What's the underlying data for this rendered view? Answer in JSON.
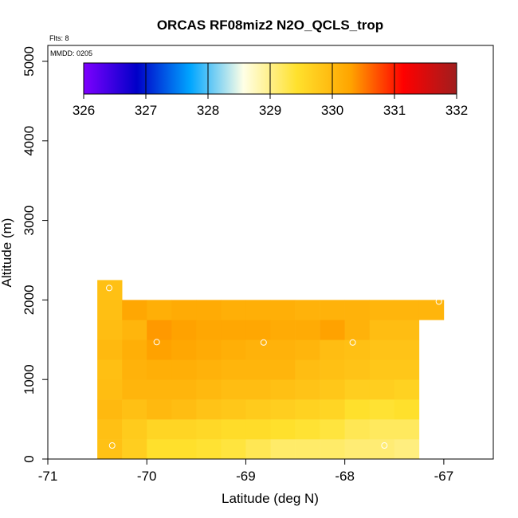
{
  "chart_data": {
    "type": "heatmap",
    "title": "ORCAS RF08miz2 N2O_QCLS_trop",
    "flights_label": "Flts: 8",
    "date_label": "MMDD: 0205",
    "xlabel": "Latitude (deg N)",
    "ylabel": "Altitude (m)",
    "xlim": [
      -71,
      -66.5
    ],
    "ylim": [
      0,
      5200
    ],
    "xticks": [
      -71,
      -70,
      -69,
      -68,
      -67
    ],
    "xtick_labels": [
      "-71",
      "-70",
      "-69",
      "-68",
      "-67"
    ],
    "yticks": [
      0,
      1000,
      2000,
      3000,
      4000,
      5000
    ],
    "ytick_labels": [
      "0",
      "1000",
      "2000",
      "3000",
      "4000",
      "5000"
    ],
    "colorbar": {
      "min": 326,
      "max": 332,
      "ticks": [
        326,
        327,
        328,
        329,
        330,
        331,
        332
      ],
      "tick_labels": [
        "326",
        "327",
        "328",
        "329",
        "330",
        "331",
        "332"
      ],
      "stops": [
        "#7F00FF",
        "#0000C8",
        "#00A5FF",
        "#FFFFE6",
        "#FFE12D",
        "#FFA500",
        "#FF0000",
        "#A01E1E"
      ]
    },
    "cell_width_deg": 0.25,
    "cell_height_m": 250,
    "columns": [
      {
        "x0": -70.5,
        "y0": 0,
        "values": [
          329.88,
          329.9,
          330.0,
          329.95,
          329.92,
          330.0,
          329.95,
          329.92,
          329.9
        ]
      },
      {
        "x0": -70.25,
        "y0": 0,
        "values": [
          329.7,
          329.75,
          329.9,
          330.05,
          330.1,
          330.15,
          330.05,
          330.25
        ]
      },
      {
        "x0": -70.0,
        "y0": 0,
        "values": [
          329.45,
          329.6,
          330.0,
          330.05,
          330.15,
          330.3,
          330.35,
          330.15
        ]
      },
      {
        "x0": -69.75,
        "y0": 0,
        "values": [
          329.45,
          329.6,
          329.95,
          330.05,
          330.15,
          330.25,
          330.3,
          330.2
        ]
      },
      {
        "x0": -69.5,
        "y0": 0,
        "values": [
          329.4,
          329.55,
          329.85,
          330.0,
          330.1,
          330.2,
          330.25,
          330.2
        ]
      },
      {
        "x0": -69.25,
        "y0": 0,
        "values": [
          329.35,
          329.5,
          329.8,
          329.95,
          330.05,
          330.15,
          330.25,
          330.15
        ]
      },
      {
        "x0": -69.0,
        "y0": 0,
        "values": [
          329.25,
          329.5,
          329.75,
          329.95,
          330.05,
          330.1,
          330.25,
          330.15
        ]
      },
      {
        "x0": -68.75,
        "y0": 0,
        "values": [
          329.15,
          329.45,
          329.7,
          329.9,
          330.05,
          330.1,
          330.2,
          330.15
        ]
      },
      {
        "x0": -68.5,
        "y0": 0,
        "values": [
          329.15,
          329.4,
          329.65,
          329.85,
          329.95,
          330.05,
          330.2,
          330.1
        ]
      },
      {
        "x0": -68.25,
        "y0": 0,
        "values": [
          329.15,
          329.35,
          329.6,
          329.8,
          329.9,
          329.95,
          330.3,
          330.1
        ]
      },
      {
        "x0": -68.0,
        "y0": 0,
        "values": [
          329.1,
          329.25,
          329.45,
          329.7,
          329.85,
          329.9,
          330.1,
          330.1
        ]
      },
      {
        "x0": -67.75,
        "y0": 0,
        "values": [
          329.1,
          329.2,
          329.4,
          329.7,
          329.8,
          329.85,
          329.95,
          330.05
        ]
      },
      {
        "x0": -67.5,
        "y0": 0,
        "values": [
          329.05,
          329.2,
          329.45,
          329.65,
          329.8,
          329.85,
          329.95,
          330.05
        ]
      },
      {
        "x0": -67.25,
        "y0": 1750,
        "values": [
          330.05
        ]
      }
    ],
    "points": [
      {
        "lat": -70.38,
        "alt": 2150
      },
      {
        "lat": -70.35,
        "alt": 170
      },
      {
        "lat": -69.9,
        "alt": 1470
      },
      {
        "lat": -68.82,
        "alt": 1465
      },
      {
        "lat": -67.92,
        "alt": 1465
      },
      {
        "lat": -67.6,
        "alt": 170
      },
      {
        "lat": -67.05,
        "alt": 1980
      }
    ]
  }
}
